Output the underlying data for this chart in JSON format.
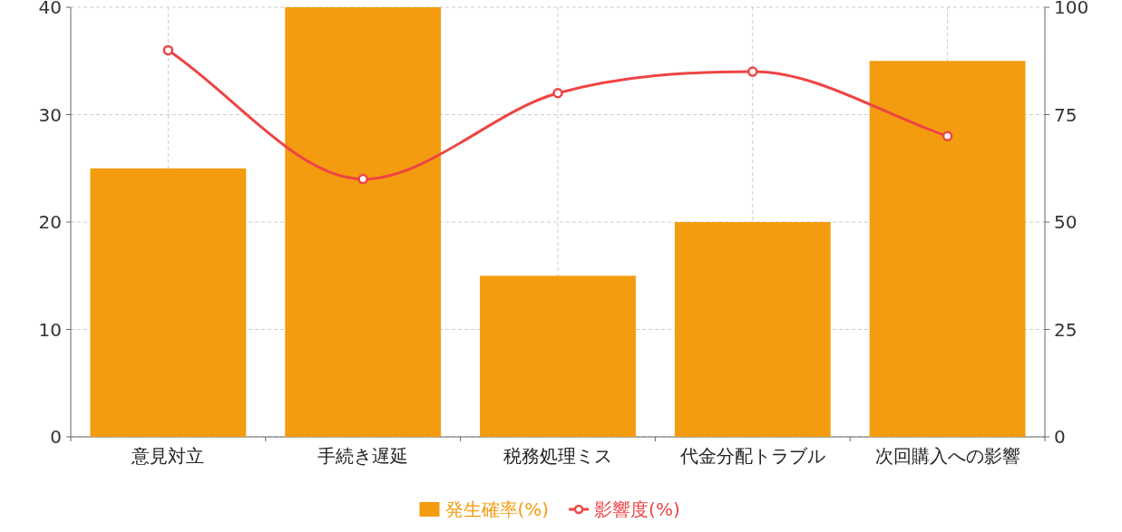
{
  "chart_data": {
    "type": "bar",
    "categories": [
      "意見対立",
      "手続き遅延",
      "税務処理ミス",
      "代金分配トラブル",
      "次回購入への影響"
    ],
    "series": [
      {
        "name": "発生確率(%)",
        "color": "#f39c0f",
        "values": [
          25,
          40,
          15,
          20,
          35
        ]
      },
      {
        "name": "影響度(%)",
        "type": "line",
        "axis": "y2",
        "color": "#ee4444",
        "values": [
          90,
          60,
          80,
          85,
          70
        ]
      }
    ],
    "ylim": [
      0,
      40
    ],
    "yticks": [
      0,
      10,
      20,
      30,
      40
    ],
    "y2lim": [
      0,
      100
    ],
    "y2ticks": [
      0,
      25,
      50,
      75,
      100
    ],
    "grid": true,
    "legend": "bottom",
    "marker": "circle",
    "line_style": "solid"
  }
}
